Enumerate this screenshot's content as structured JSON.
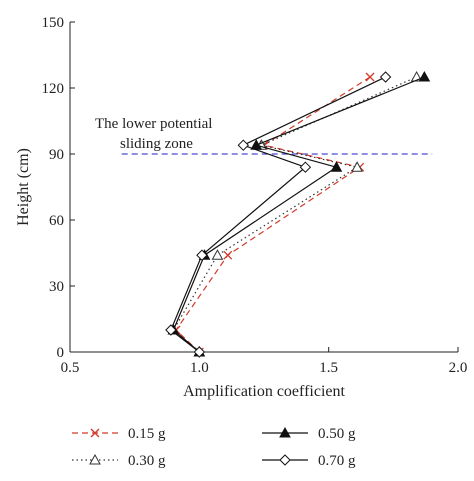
{
  "chart_data": {
    "type": "line",
    "xlabel": "Amplification coefficient",
    "ylabel": "Height (cm)",
    "xlim": [
      0.5,
      2.0
    ],
    "ylim": [
      0,
      150
    ],
    "xticks": [
      0.5,
      1.0,
      1.5,
      2.0
    ],
    "xtick_labels": [
      "0.5",
      "1.0",
      "1.5",
      "2.0"
    ],
    "yticks": [
      0,
      30,
      60,
      90,
      120,
      150
    ],
    "ytick_labels": [
      "0",
      "30",
      "60",
      "90",
      "120",
      "150"
    ],
    "grid": false,
    "legend_position": "bottom",
    "reference_line": {
      "y": 90,
      "color": "#4a4ad0",
      "style": "dashed",
      "label_line1": "The lower potential",
      "label_line2": "sliding zone"
    },
    "series": [
      {
        "name": "0.15 g",
        "color": "#d23a2a",
        "line": "dashed",
        "marker": "x",
        "x": [
          1.0,
          0.91,
          1.11,
          1.62,
          1.25,
          1.66
        ],
        "y": [
          0,
          10,
          44,
          84,
          94,
          125
        ]
      },
      {
        "name": "0.30 g",
        "color": "#333333",
        "line": "dotted",
        "marker": "triangle-open",
        "x": [
          1.0,
          0.9,
          1.07,
          1.61,
          1.24,
          1.84
        ],
        "y": [
          0,
          10,
          44,
          84,
          94,
          125
        ]
      },
      {
        "name": "0.50 g",
        "color": "#111111",
        "line": "solid",
        "marker": "triangle-filled",
        "x": [
          1.0,
          0.9,
          1.02,
          1.53,
          1.22,
          1.87
        ],
        "y": [
          0,
          10,
          44,
          84,
          94,
          125
        ]
      },
      {
        "name": "0.70 g",
        "color": "#111111",
        "line": "solid",
        "marker": "diamond-open",
        "x": [
          1.0,
          0.89,
          1.01,
          1.41,
          1.17,
          1.72
        ],
        "y": [
          0,
          10,
          44,
          84,
          94,
          125
        ]
      }
    ]
  }
}
